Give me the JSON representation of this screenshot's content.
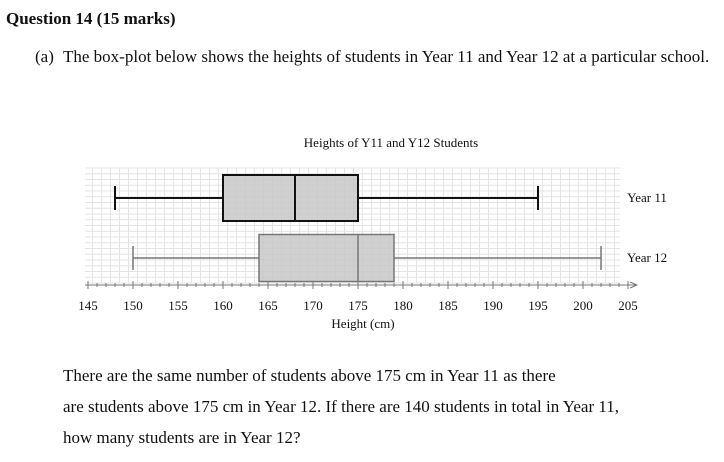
{
  "question": {
    "heading": "Question 14 (15 marks)",
    "part_label": "(a)",
    "part_text": "The box-plot below shows the heights of students in Year 11 and Year 12 at a particular school.",
    "body_lines": [
      "There are the same number of students above 175 cm in Year 11 as there",
      "are students above 175 cm in Year 12. If there are 140 students in total in Year 11,",
      "how many students are in Year 12?"
    ]
  },
  "chart_data": {
    "type": "boxplot",
    "title": "Heights of Y11 and Y12 Students",
    "xlabel": "Height (cm)",
    "xlim": [
      145,
      205
    ],
    "x_ticks": [
      "145",
      "150",
      "155",
      "160",
      "165",
      "170",
      "175",
      "180",
      "185",
      "190",
      "195",
      "200",
      "205"
    ],
    "grid": true,
    "colors": {
      "box_fill": "#c8c8c8",
      "y11_stroke": "#111111",
      "y12_stroke": "#777777"
    },
    "series": [
      {
        "name": "Year 11",
        "min": 148,
        "q1": 160,
        "median": 168,
        "q3": 175,
        "max": 195
      },
      {
        "name": "Year 12",
        "min": 150,
        "q1": 164,
        "median": 175,
        "q3": 179,
        "max": 202
      }
    ]
  }
}
